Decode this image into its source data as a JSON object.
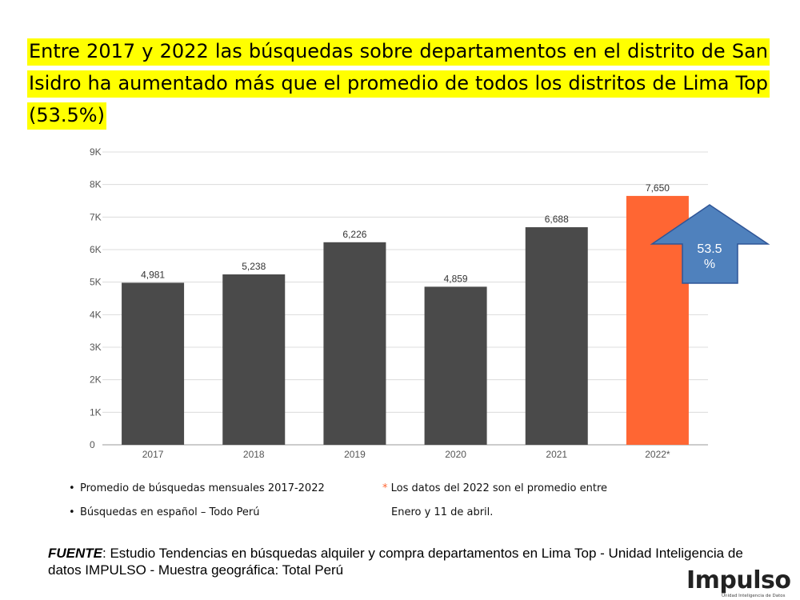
{
  "headline": "Entre 2017 y 2022 las búsquedas sobre departamentos en el distrito de San Isidro ha aumentado más que el promedio de todos los distritos de Lima Top (53.5%)",
  "chart_data": {
    "type": "bar",
    "categories": [
      "2017",
      "2018",
      "2019",
      "2020",
      "2021",
      "2022*"
    ],
    "values": [
      4981,
      5238,
      6226,
      4859,
      6688,
      7650
    ],
    "data_labels": [
      "4,981",
      "5,238",
      "6,226",
      "4,859",
      "6,688",
      "7,650"
    ],
    "ylim": [
      0,
      9000
    ],
    "yticks": [
      0,
      1000,
      2000,
      3000,
      4000,
      5000,
      6000,
      7000,
      8000,
      9000
    ],
    "ytick_labels": [
      "0",
      "1K",
      "2K",
      "3K",
      "4K",
      "5K",
      "6K",
      "7K",
      "8K",
      "9K"
    ],
    "grid": true,
    "bar_colors": [
      "#4a4a4a",
      "#4a4a4a",
      "#4a4a4a",
      "#4a4a4a",
      "#4a4a4a",
      "#ff6633"
    ],
    "annotation": {
      "text_line1": "53.5",
      "text_line2": "%",
      "shape": "up-arrow",
      "color": "#4f81bd"
    }
  },
  "notes": {
    "item1": "Promedio de búsquedas mensuales 2017-2022",
    "item2": "Búsquedas en español – Todo Perú",
    "asterisk": "*",
    "footnote_line1": "Los datos del 2022 son el promedio entre",
    "footnote_line2": "Enero y 11 de abril."
  },
  "source": {
    "label": "FUENTE",
    "text": ": Estudio Tendencias en búsquedas alquiler y compra departamentos en Lima Top -  Unidad Inteligencia de datos IMPULSO - Muestra geográfica: Total Perú"
  },
  "logo": {
    "brand": "Impulso",
    "tagline": "Unidad Inteligencia de Datos"
  },
  "colors": {
    "highlight": "#ffff00",
    "bar": "#4a4a4a",
    "bar_highlight": "#ff6633",
    "arrow": "#4f81bd"
  }
}
